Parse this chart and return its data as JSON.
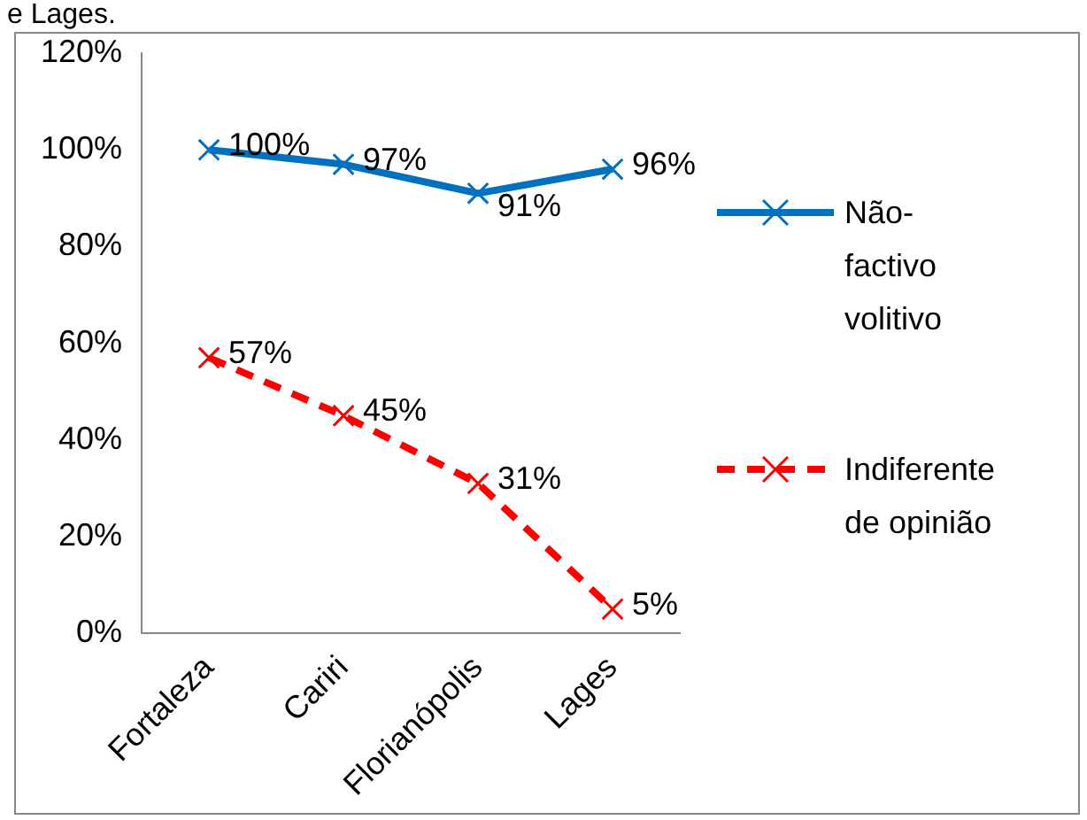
{
  "chart_data": {
    "type": "line",
    "annotations": [
      "e Lages."
    ],
    "categories": [
      "Fortaleza",
      "Cariri",
      "Florianópolis",
      "Lages"
    ],
    "series": [
      {
        "name": "Não-factivo volitivo",
        "color": "#0070c0",
        "values": [
          100,
          97,
          91,
          96
        ],
        "value_labels": [
          "100%",
          "97%",
          "91%",
          "96%"
        ],
        "marker": "cross",
        "line_style": "solid"
      },
      {
        "name": "Indiferente de opinião",
        "color": "#ff0000",
        "values": [
          57,
          45,
          31,
          5
        ],
        "value_labels": [
          "57%",
          "45%",
          "31%",
          "5%"
        ],
        "marker": "cross",
        "line_style": "dashed"
      }
    ],
    "ylim": [
      0,
      120
    ],
    "yticks": [
      {
        "value": 0,
        "label": "0%"
      },
      {
        "value": 20,
        "label": "20%"
      },
      {
        "value": 40,
        "label": "40%"
      },
      {
        "value": 60,
        "label": "60%"
      },
      {
        "value": 80,
        "label": "80%"
      },
      {
        "value": 100,
        "label": "100%"
      },
      {
        "value": 120,
        "label": "120%"
      }
    ],
    "grid": false,
    "legend": "right"
  }
}
